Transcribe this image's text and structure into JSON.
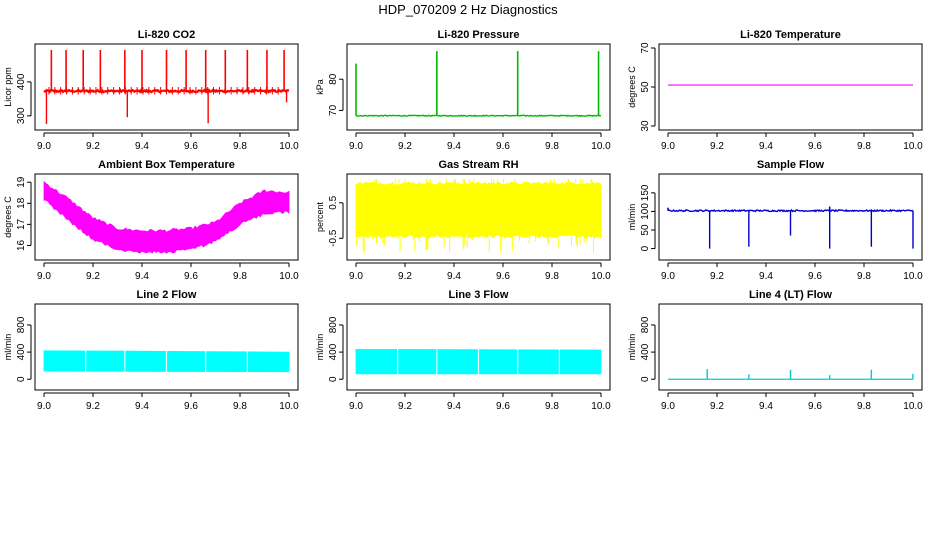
{
  "title": "HDP_070209  2 Hz Diagnostics",
  "chart_data": [
    {
      "type": "line",
      "title": "Li-820 CO2",
      "ylabel": "Licor ppm",
      "color": "#ff0000",
      "xlim": [
        9.0,
        10.0
      ],
      "ylim": [
        270,
        500
      ],
      "xticks": [
        "9.0",
        "9.2",
        "9.4",
        "9.6",
        "9.8",
        "10.0"
      ],
      "yticks": [
        {
          "v": 300,
          "label": "300"
        },
        {
          "v": 400,
          "label": "400"
        }
      ],
      "pattern": "co2",
      "baseline": 373,
      "noise": 3,
      "up_spikes": [
        {
          "x": 9.03,
          "y": 494
        },
        {
          "x": 9.09,
          "y": 494
        },
        {
          "x": 9.16,
          "y": 494
        },
        {
          "x": 9.23,
          "y": 494
        },
        {
          "x": 9.33,
          "y": 494
        },
        {
          "x": 9.4,
          "y": 494
        },
        {
          "x": 9.5,
          "y": 494
        },
        {
          "x": 9.58,
          "y": 494
        },
        {
          "x": 9.66,
          "y": 494
        },
        {
          "x": 9.74,
          "y": 494
        },
        {
          "x": 9.83,
          "y": 494
        },
        {
          "x": 9.91,
          "y": 494
        },
        {
          "x": 9.98,
          "y": 494
        }
      ],
      "down_spikes": [
        {
          "x": 9.01,
          "y": 276
        },
        {
          "x": 9.34,
          "y": 296
        },
        {
          "x": 9.67,
          "y": 278
        },
        {
          "x": 9.99,
          "y": 340
        }
      ]
    },
    {
      "type": "line",
      "title": "Li-820 Pressure",
      "ylabel": "kPa",
      "color": "#00bb00",
      "xlim": [
        9.0,
        10.0
      ],
      "ylim": [
        65,
        90
      ],
      "xticks": [
        "9.0",
        "9.2",
        "9.4",
        "9.6",
        "9.8",
        "10.0"
      ],
      "yticks": [
        {
          "v": 70,
          "label": "70"
        },
        {
          "v": 80,
          "label": "80"
        }
      ],
      "pattern": "pressure",
      "baseline": 68.3,
      "noise": 0.15,
      "up_spikes": [
        {
          "x": 9.0,
          "y": 85
        },
        {
          "x": 9.33,
          "y": 89
        },
        {
          "x": 9.66,
          "y": 89
        },
        {
          "x": 9.99,
          "y": 89
        }
      ],
      "down_spikes": []
    },
    {
      "type": "line",
      "title": "Li-820 Temperature",
      "ylabel": "degrees C",
      "color": "#ff00ff",
      "xlim": [
        9.0,
        10.0
      ],
      "ylim": [
        30,
        70
      ],
      "xticks": [
        "9.0",
        "9.2",
        "9.4",
        "9.6",
        "9.8",
        "10.0"
      ],
      "yticks": [
        {
          "v": 30,
          "label": "30"
        },
        {
          "v": 50,
          "label": "50"
        },
        {
          "v": 70,
          "label": "70"
        }
      ],
      "pattern": "flat",
      "baseline": 51.0,
      "noise": 0,
      "up_spikes": [],
      "down_spikes": []
    },
    {
      "type": "area",
      "title": "Ambient Box Temperature",
      "ylabel": "degrees C",
      "color": "#ff00ff",
      "xlim": [
        9.0,
        10.0
      ],
      "ylim": [
        15.5,
        19.2
      ],
      "xticks": [
        "9.0",
        "9.2",
        "9.4",
        "9.6",
        "9.8",
        "10.0"
      ],
      "yticks": [
        {
          "v": 16,
          "label": "16"
        },
        {
          "v": 17,
          "label": "17"
        },
        {
          "v": 18,
          "label": "18"
        },
        {
          "v": 19,
          "label": "19"
        }
      ],
      "pattern": "envelope",
      "upper": [
        [
          9.0,
          19.0
        ],
        [
          9.1,
          18.2
        ],
        [
          9.2,
          17.3
        ],
        [
          9.3,
          16.8
        ],
        [
          9.4,
          16.7
        ],
        [
          9.5,
          16.7
        ],
        [
          9.6,
          16.8
        ],
        [
          9.7,
          17.1
        ],
        [
          9.8,
          18.0
        ],
        [
          9.9,
          18.6
        ],
        [
          10.0,
          18.5
        ]
      ],
      "lower": [
        [
          9.0,
          18.2
        ],
        [
          9.1,
          17.2
        ],
        [
          9.2,
          16.3
        ],
        [
          9.3,
          15.8
        ],
        [
          9.4,
          15.7
        ],
        [
          9.5,
          15.7
        ],
        [
          9.6,
          15.8
        ],
        [
          9.7,
          16.2
        ],
        [
          9.8,
          17.0
        ],
        [
          9.9,
          17.5
        ],
        [
          10.0,
          17.6
        ]
      ]
    },
    {
      "type": "area",
      "title": "Gas Stream RH",
      "ylabel": "percent",
      "color": "#ffff00",
      "xlim": [
        9.0,
        10.0
      ],
      "ylim": [
        -1.0,
        1.2
      ],
      "xticks": [
        "9.0",
        "9.2",
        "9.4",
        "9.6",
        "9.8",
        "10.0"
      ],
      "yticks": [
        {
          "v": -0.5,
          "label": "-0.5"
        },
        {
          "v": 0.5,
          "label": "0.5"
        }
      ],
      "pattern": "envelope",
      "upper": [
        [
          9.0,
          1.05
        ],
        [
          10.0,
          1.05
        ]
      ],
      "lower": [
        [
          9.0,
          -0.45
        ],
        [
          10.0,
          -0.45
        ]
      ],
      "spikes_down_to": -0.95
    },
    {
      "type": "line",
      "title": "Sample Flow",
      "ylabel": "ml/min",
      "color": "#0000cc",
      "xlim": [
        9.0,
        10.0
      ],
      "ylim": [
        -20,
        190
      ],
      "xticks": [
        "9.0",
        "9.2",
        "9.4",
        "9.6",
        "9.8",
        "10.0"
      ],
      "yticks": [
        {
          "v": 0,
          "label": "0"
        },
        {
          "v": 50,
          "label": "50"
        },
        {
          "v": 100,
          "label": "100"
        },
        {
          "v": 150,
          "label": "150"
        }
      ],
      "pattern": "sample",
      "baseline": 102,
      "noise": 2,
      "up_spikes": [
        {
          "x": 9.0,
          "y": 110
        },
        {
          "x": 9.66,
          "y": 113
        }
      ],
      "down_spikes": [
        {
          "x": 9.17,
          "y": 0
        },
        {
          "x": 9.33,
          "y": 5
        },
        {
          "x": 9.5,
          "y": 35
        },
        {
          "x": 9.66,
          "y": 0
        },
        {
          "x": 9.83,
          "y": 5
        },
        {
          "x": 10.0,
          "y": 0
        }
      ]
    },
    {
      "type": "area",
      "title": "Line 2 Flow",
      "ylabel": "ml/min",
      "color": "#00ffff",
      "xlim": [
        9.0,
        10.0
      ],
      "ylim": [
        -100,
        1050
      ],
      "xticks": [
        "9.0",
        "9.2",
        "9.4",
        "9.6",
        "9.8",
        "10.0"
      ],
      "yticks": [
        {
          "v": 0,
          "label": "0"
        },
        {
          "v": 400,
          "label": "400"
        },
        {
          "v": 800,
          "label": "800"
        }
      ],
      "pattern": "block",
      "upper": [
        [
          9.0,
          420
        ],
        [
          10.0,
          400
        ]
      ],
      "lower": [
        [
          9.0,
          120
        ],
        [
          10.0,
          110
        ]
      ],
      "gaps": [
        9.17,
        9.33,
        9.5,
        9.66,
        9.83
      ]
    },
    {
      "type": "area",
      "title": "Line 3 Flow",
      "ylabel": "ml/min",
      "color": "#00ffff",
      "xlim": [
        9.0,
        10.0
      ],
      "ylim": [
        -100,
        1050
      ],
      "xticks": [
        "9.0",
        "9.2",
        "9.4",
        "9.6",
        "9.8",
        "10.0"
      ],
      "yticks": [
        {
          "v": 0,
          "label": "0"
        },
        {
          "v": 400,
          "label": "400"
        },
        {
          "v": 800,
          "label": "800"
        }
      ],
      "pattern": "block",
      "upper": [
        [
          9.0,
          440
        ],
        [
          10.0,
          430
        ]
      ],
      "lower": [
        [
          9.0,
          80
        ],
        [
          10.0,
          80
        ]
      ],
      "gaps": [
        9.17,
        9.33,
        9.5,
        9.66,
        9.83
      ]
    },
    {
      "type": "line",
      "title": "Line 4 (LT) Flow",
      "ylabel": "ml/min",
      "color": "#00cccc",
      "xlim": [
        9.0,
        10.0
      ],
      "ylim": [
        -100,
        1050
      ],
      "xticks": [
        "9.0",
        "9.2",
        "9.4",
        "9.6",
        "9.8",
        "10.0"
      ],
      "yticks": [
        {
          "v": 0,
          "label": "0"
        },
        {
          "v": 400,
          "label": "400"
        },
        {
          "v": 800,
          "label": "800"
        }
      ],
      "pattern": "flatspikes",
      "baseline": 0,
      "noise": 0,
      "up_spikes": [
        {
          "x": 9.16,
          "y": 150
        },
        {
          "x": 9.33,
          "y": 70
        },
        {
          "x": 9.5,
          "y": 140
        },
        {
          "x": 9.66,
          "y": 60
        },
        {
          "x": 9.83,
          "y": 140
        },
        {
          "x": 10.0,
          "y": 80
        }
      ],
      "down_spikes": []
    }
  ]
}
